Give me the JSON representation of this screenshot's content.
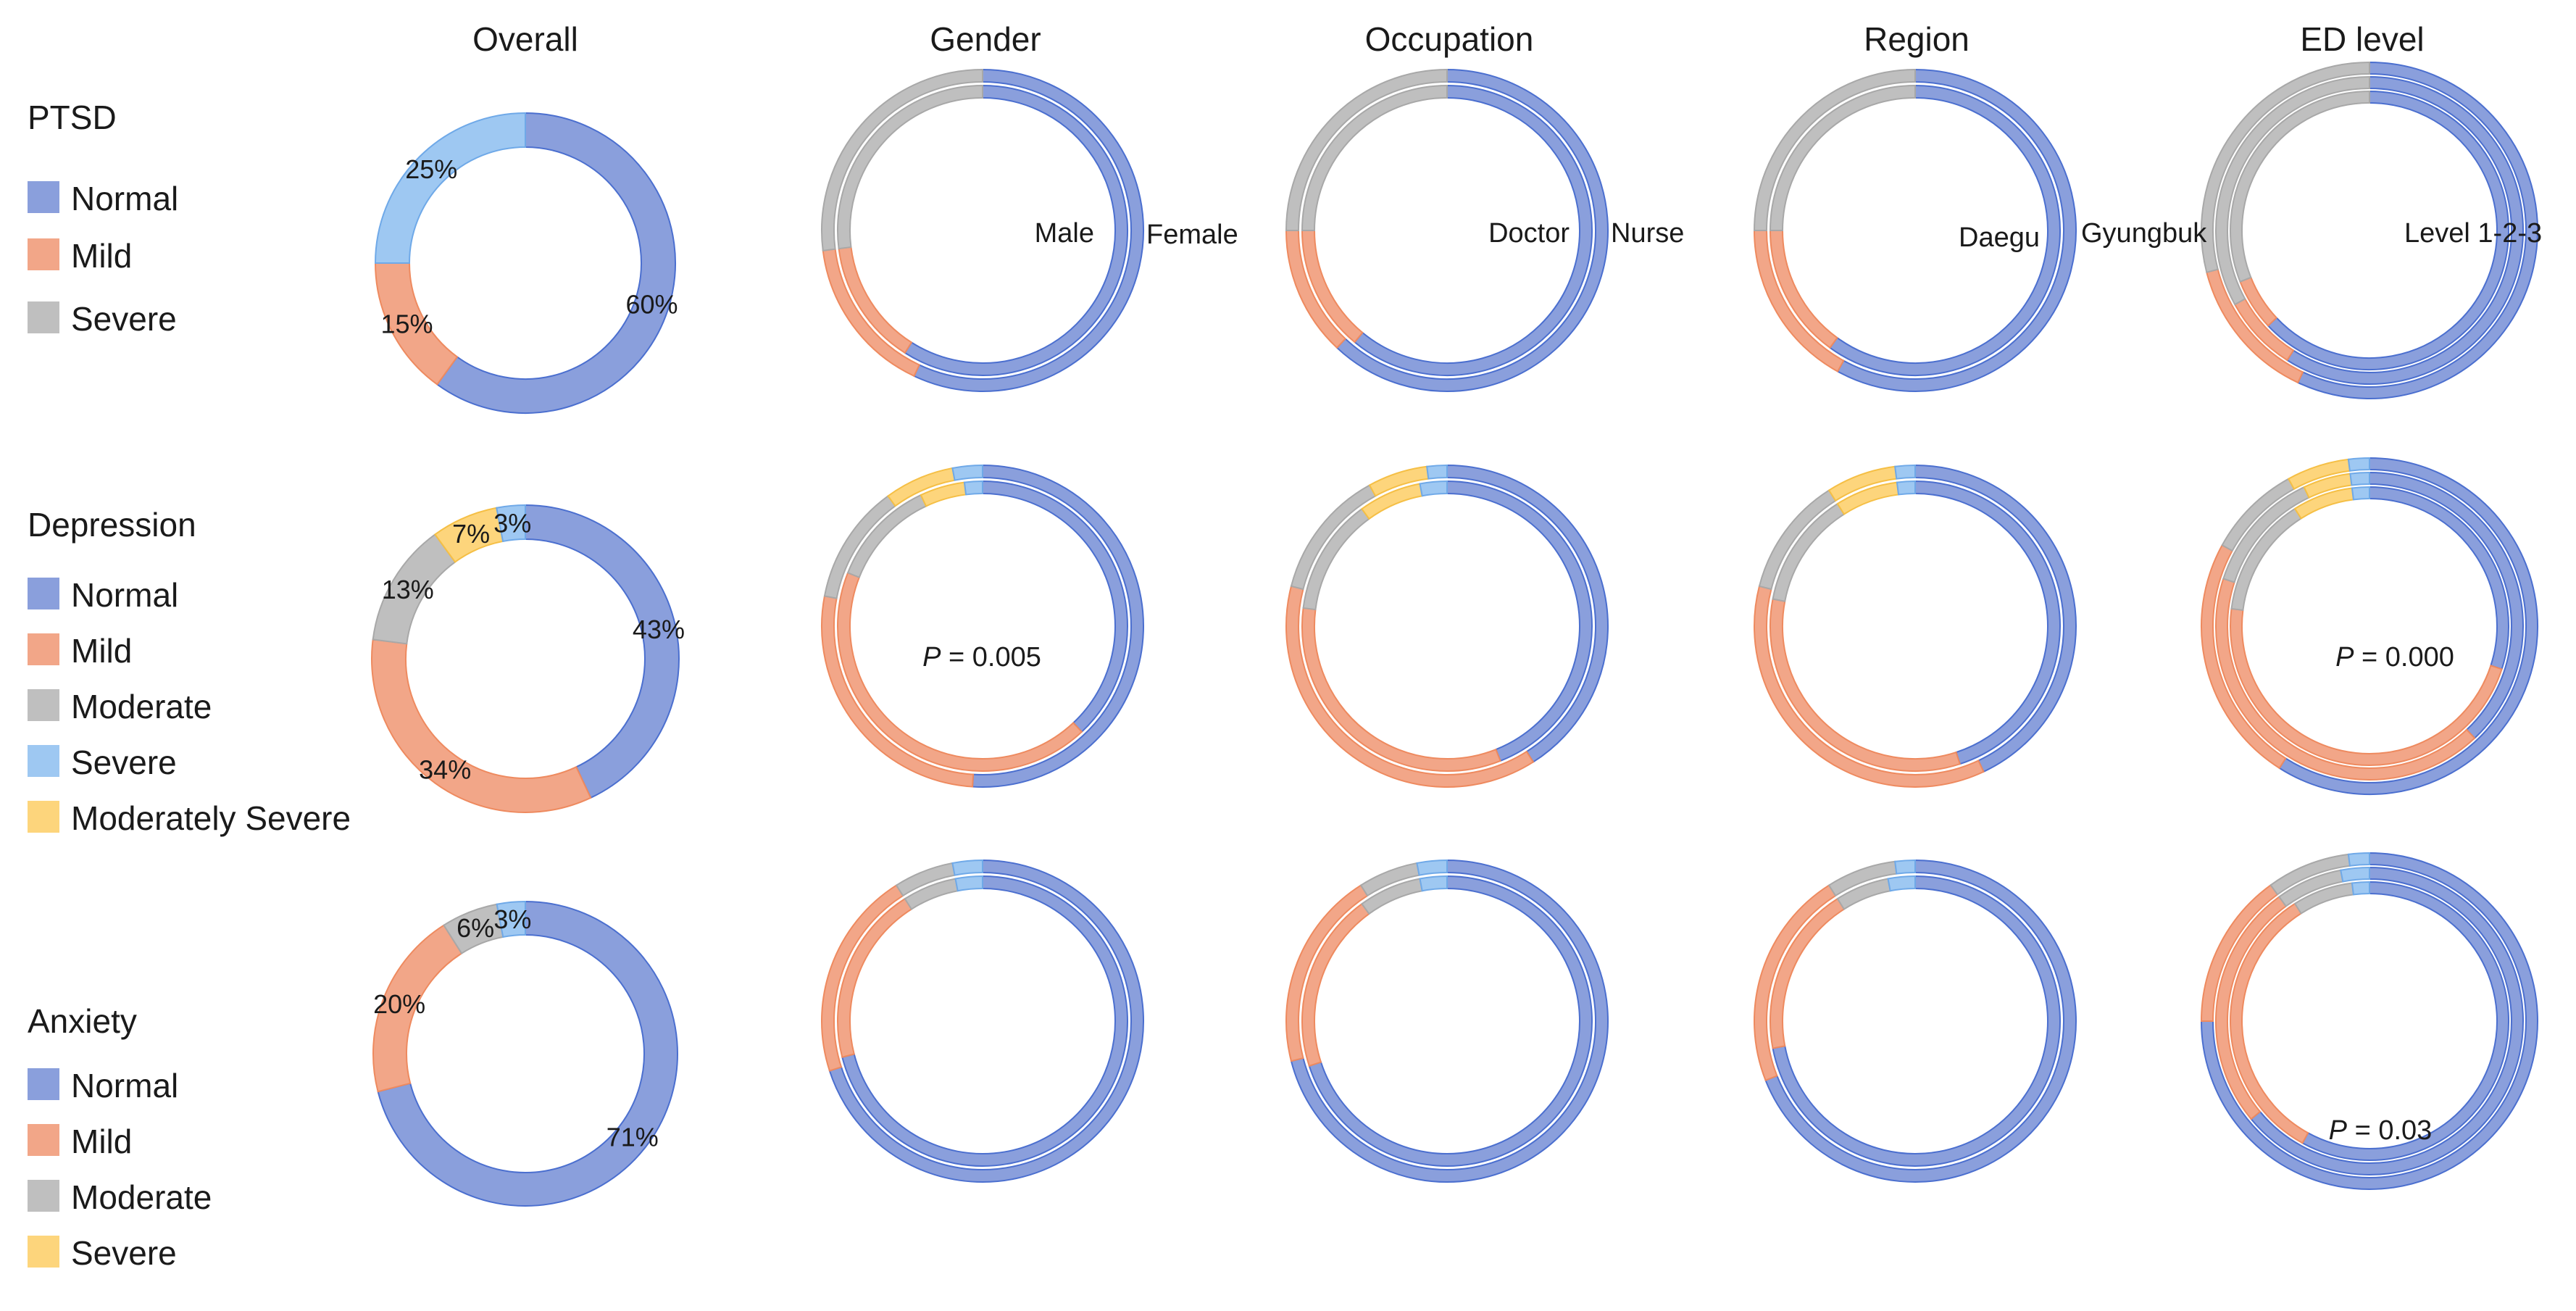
{
  "colors": {
    "Normal": "#8a9fdc",
    "Mild": "#f2a688",
    "Moderate": "#bfbfbf",
    "Severe": "#9ec8f2",
    "SevereAnxiety": "#fdd57c",
    "ModeratelySevere": "#fdd57c",
    "normal_stroke": "#4b6fcf",
    "mild_stroke": "#ee8a5f",
    "moderate_stroke": "#a8a8a8",
    "severe_stroke": "#6fa9e8",
    "yellow_stroke": "#f5bf45"
  },
  "columns": [
    "Overall",
    "Gender",
    "Occupation",
    "Region",
    "ED level"
  ],
  "chart_data": [
    {
      "type": "pie",
      "row": "PTSD",
      "legend": [
        "Normal",
        "Mild",
        "Severe"
      ],
      "overall": {
        "slices": [
          {
            "name": "Normal",
            "value": 60,
            "label": "60%"
          },
          {
            "name": "Mild",
            "value": 15,
            "label": "15%"
          },
          {
            "name": "Severe",
            "value": 25,
            "label": "25%"
          }
        ]
      },
      "groups": {
        "Gender": {
          "ring_labels": [
            "Male",
            "Female"
          ],
          "rings": [
            [
              57,
              16,
              27
            ],
            [
              59,
              14,
              27
            ]
          ]
        },
        "Occupation": {
          "ring_labels": [
            "Doctor",
            "Nurse"
          ],
          "rings": [
            [
              62,
              13,
              25
            ],
            [
              61,
              14,
              25
            ]
          ]
        },
        "Region": {
          "ring_labels": [
            "Daegu",
            "Gyungbuk"
          ],
          "rings": [
            [
              58,
              17,
              25
            ],
            [
              60,
              15,
              25
            ]
          ]
        },
        "ED level": {
          "ring_labels": [
            "Level 1-2-3"
          ],
          "rings": [
            [
              57,
              14,
              29
            ],
            [
              59,
              8,
              33
            ],
            [
              63,
              6,
              31
            ]
          ]
        }
      }
    },
    {
      "type": "pie",
      "row": "Depression",
      "legend": [
        "Normal",
        "Mild",
        "Moderate",
        "Severe",
        "Moderately Severe"
      ],
      "overall": {
        "slices": [
          {
            "name": "Normal",
            "value": 43,
            "label": "43%"
          },
          {
            "name": "Mild",
            "value": 34,
            "label": "34%"
          },
          {
            "name": "Moderate",
            "value": 13,
            "label": "13%"
          },
          {
            "name": "Moderately Severe",
            "value": 7,
            "label": "7%"
          },
          {
            "name": "Severe",
            "value": 3,
            "label": "3%"
          }
        ]
      },
      "groups": {
        "Gender": {
          "p_value": "0.005",
          "rings": [
            [
              51,
              27,
              12,
              7,
              3
            ],
            [
              38,
              43,
              12,
              5,
              2
            ]
          ]
        },
        "Occupation": {
          "rings": [
            [
              41,
              38,
              13,
              6,
              2
            ],
            [
              44,
              33,
              13,
              7,
              3
            ]
          ]
        },
        "Region": {
          "rings": [
            [
              43,
              36,
              12,
              7,
              2
            ],
            [
              45,
              33,
              13,
              7,
              2
            ]
          ]
        },
        "ED level": {
          "p_value": "0.000",
          "rings": [
            [
              59,
              24,
              9,
              6,
              2
            ],
            [
              38,
              42,
              13,
              5,
              2
            ],
            [
              30,
              47,
              14,
              7,
              2
            ]
          ]
        }
      }
    },
    {
      "type": "pie",
      "row": "Anxiety",
      "legend": [
        "Normal",
        "Mild",
        "Moderate",
        "Severe"
      ],
      "overall": {
        "slices": [
          {
            "name": "Normal",
            "value": 71,
            "label": "71%"
          },
          {
            "name": "Mild",
            "value": 20,
            "label": "20%"
          },
          {
            "name": "Moderate",
            "value": 6,
            "label": "6%"
          },
          {
            "name": "Severe",
            "value": 3,
            "label": "3%"
          }
        ]
      },
      "groups": {
        "Gender": {
          "rings": [
            [
              70,
              21,
              6,
              3
            ],
            [
              71,
              20,
              6,
              3
            ]
          ]
        },
        "Occupation": {
          "rings": [
            [
              71,
              20,
              6,
              3
            ],
            [
              70,
              20,
              7,
              3
            ]
          ]
        },
        "Region": {
          "rings": [
            [
              69,
              22,
              7,
              2
            ],
            [
              72,
              19,
              6,
              3
            ]
          ]
        },
        "ED level": {
          "p_value": "0.03",
          "rings": [
            [
              75,
              15,
              8,
              2
            ],
            [
              64,
              26,
              7,
              3
            ],
            [
              58,
              33,
              7,
              2
            ]
          ]
        }
      }
    }
  ]
}
